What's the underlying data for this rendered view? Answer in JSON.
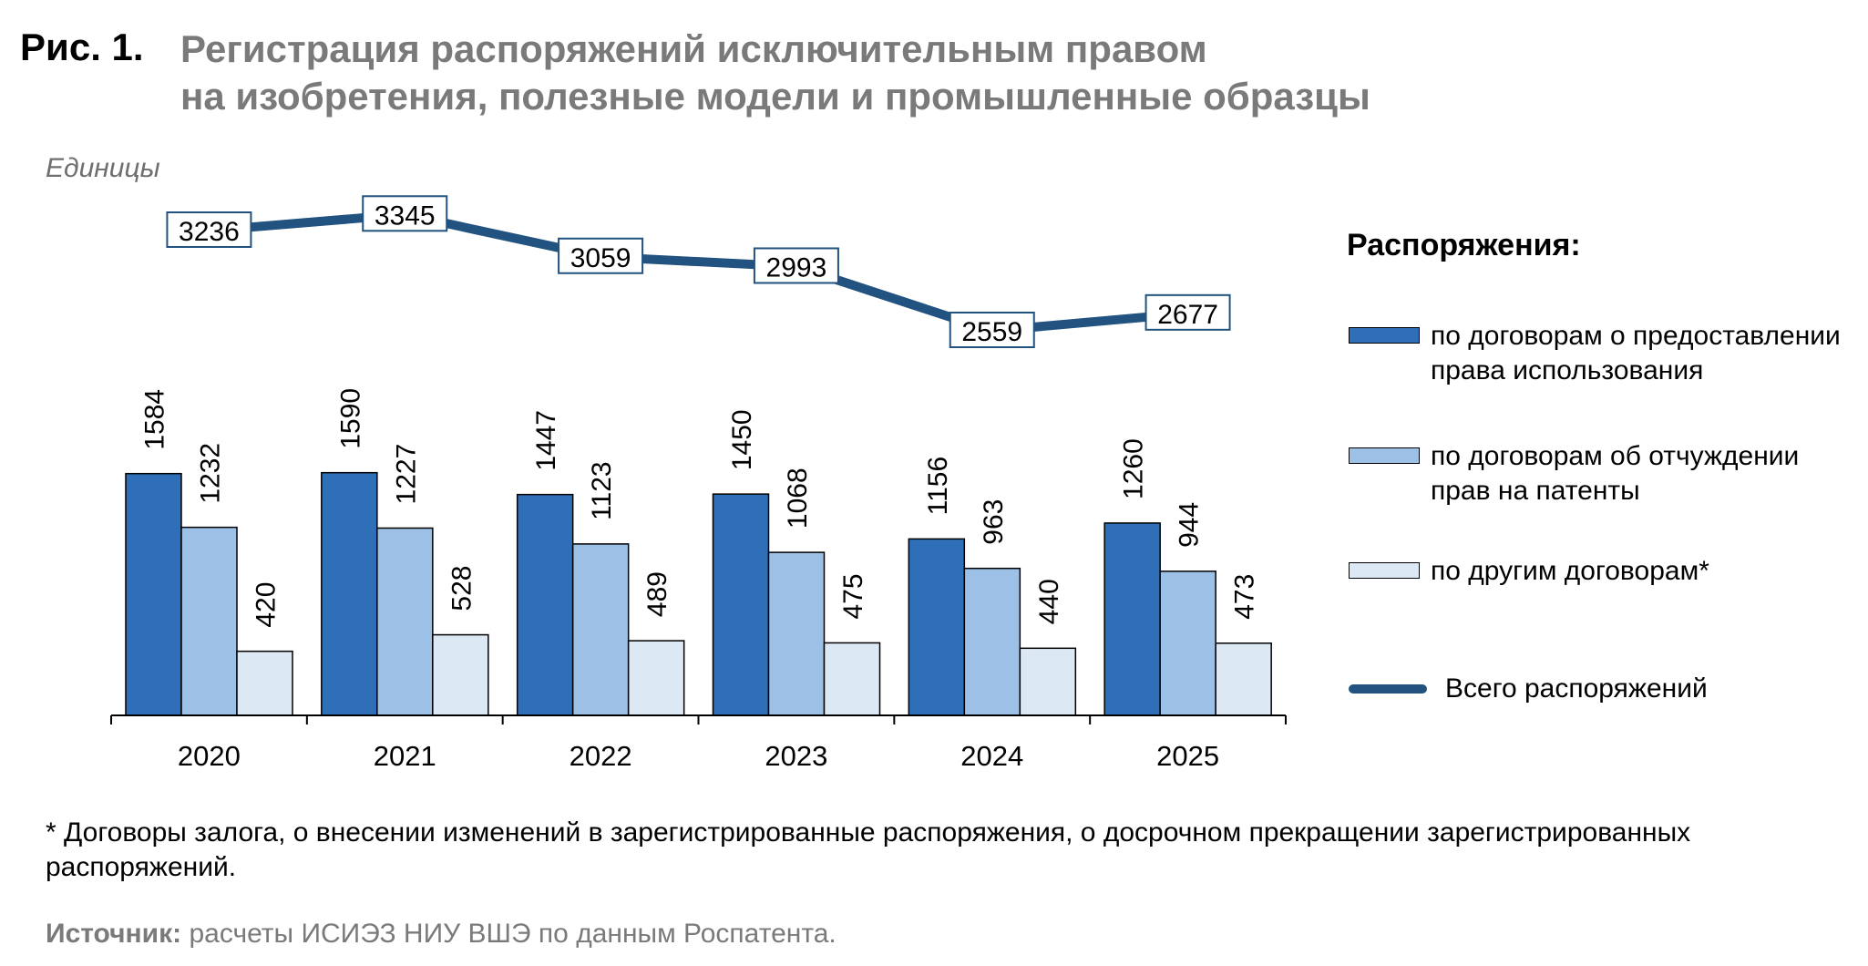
{
  "figure": {
    "label": "Рис. 1.",
    "title_line1": "Регистрация распоряжений исключительным правом",
    "title_line2": "на изобретения, полезные модели и промышленные образцы"
  },
  "units": "Единицы",
  "legend": {
    "title": "Распоряжения",
    "title_colon": ":",
    "items": [
      {
        "label": "по договорам о предоставлении права использования",
        "color": "#2e6fb7"
      },
      {
        "label": "по договорам об отчуждении прав на патенты",
        "color": "#9dc1e6"
      },
      {
        "label": "по другим договорам*",
        "color": "#dde8f5"
      },
      {
        "label": "Всего распоряжений",
        "color": "#22527f"
      }
    ]
  },
  "footnote": "* Договоры залога, о внесении изменений в зарегистрированные распоряжения, о досрочном прекращении зарегистрированных распоряжений.",
  "source": {
    "label": "Источник:",
    "text": "расчеты ИСИЭЗ НИУ ВШЭ по данным Роспатента."
  },
  "chart_data": {
    "type": "bar",
    "categories": [
      "2020",
      "2021",
      "2022",
      "2023",
      "2024",
      "2025"
    ],
    "series": [
      {
        "name": "по договорам о предоставлении права использования",
        "type": "bar",
        "color": "#2e6fb7",
        "values": [
          1584,
          1590,
          1447,
          1450,
          1156,
          1260
        ]
      },
      {
        "name": "по договорам об отчуждении прав на патенты",
        "type": "bar",
        "color": "#9dc1e6",
        "values": [
          1232,
          1227,
          1123,
          1068,
          963,
          944
        ]
      },
      {
        "name": "по другим договорам*",
        "type": "bar",
        "color": "#dde8f5",
        "values": [
          420,
          528,
          489,
          475,
          440,
          473
        ]
      },
      {
        "name": "Всего распоряжений",
        "type": "line",
        "color": "#22527f",
        "values": [
          3236,
          3345,
          3059,
          2993,
          2559,
          2677
        ]
      }
    ],
    "ylabel": "Единицы",
    "grid": false,
    "legend_position": "right"
  }
}
